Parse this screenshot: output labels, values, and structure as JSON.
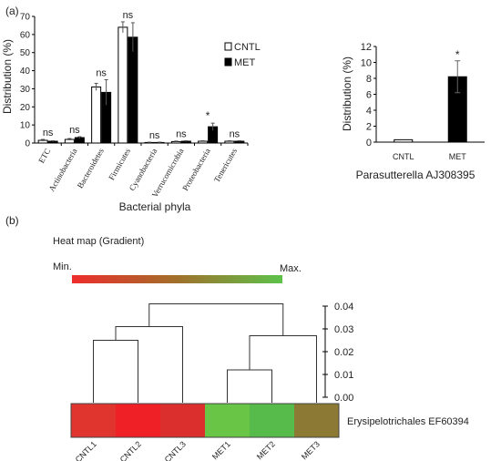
{
  "panel_a_label": "(a)",
  "panel_b_label": "(b)",
  "heatmap_title": "Heat map (Gradient)",
  "gradient_min": "Min.",
  "gradient_max": "Max.",
  "colors": {
    "cntl_fill": "#ffffff",
    "met_fill": "#000000",
    "grad_start": "#ee2c2c",
    "grad_mid": "#a0702a",
    "grad_end": "#5cc24a"
  },
  "chart_data": [
    {
      "type": "bar",
      "ylabel": "Distribution (%)",
      "xlabel": "Bacterial phyla",
      "ylim": [
        0,
        70
      ],
      "yticks": [
        0,
        10,
        20,
        30,
        40,
        50,
        60,
        70
      ],
      "categories": [
        "ETC",
        "Actinobacteria",
        "Bacteroidetes",
        "Firmicutes",
        "Cyanobacteria",
        "Verrucomicrobia",
        "Proteobacteria",
        "Tenericutes"
      ],
      "series": [
        {
          "name": "CNTL",
          "values": [
            1.5,
            2.0,
            31.0,
            64.0,
            0.3,
            0.8,
            1.0,
            1.0
          ],
          "errors": [
            0.5,
            0.5,
            2.0,
            3.0,
            0.2,
            0.3,
            0.3,
            0.3
          ]
        },
        {
          "name": "MET",
          "values": [
            1.0,
            3.0,
            28.0,
            58.5,
            0.3,
            1.0,
            9.0,
            1.0
          ],
          "errors": [
            0.3,
            0.5,
            7.0,
            8.0,
            0.2,
            0.3,
            2.0,
            0.3
          ]
        }
      ],
      "annotations": [
        "ns",
        "ns",
        "ns",
        "ns",
        "ns",
        "ns",
        "*",
        "ns"
      ],
      "legend": "top-right"
    },
    {
      "type": "bar",
      "ylabel": "Distribution (%)",
      "xlabel": "Parasutterella AJ308395",
      "ylim": [
        0,
        12
      ],
      "yticks": [
        0,
        2,
        4,
        6,
        8,
        10,
        12
      ],
      "categories": [
        "CNTL",
        "MET"
      ],
      "values": [
        0.3,
        8.2
      ],
      "errors": [
        0.1,
        2.0
      ],
      "annotations": [
        "",
        "*"
      ]
    },
    {
      "type": "heatmap",
      "row_label": "Erysipelotrichales EF60394",
      "columns": [
        "CNTL1",
        "CNTL2",
        "CNTL3",
        "MET1",
        "MET2",
        "MET3"
      ],
      "cell_colors": [
        "#e0342f",
        "#ef2127",
        "#da2f2d",
        "#69c545",
        "#56bb4b",
        "#8c7a34"
      ],
      "dendrogram_scale": [
        0.0,
        0.01,
        0.02,
        0.03,
        0.04
      ],
      "dendrogram_tick_labels": [
        "0.00",
        "0.01",
        "0.02",
        "0.03",
        "0.04"
      ],
      "merges": [
        {
          "a": "CNTL1",
          "b": "CNTL2",
          "height": 0.025
        },
        {
          "a": "MET1",
          "b": "MET2",
          "height": 0.012
        },
        {
          "a": "CNTL1+CNTL2",
          "b": "CNTL3",
          "height": 0.031
        },
        {
          "a": "MET1+MET2",
          "b": "MET3",
          "height": 0.027
        },
        {
          "a": "CNTL",
          "b": "MET",
          "height": 0.041
        }
      ]
    }
  ]
}
